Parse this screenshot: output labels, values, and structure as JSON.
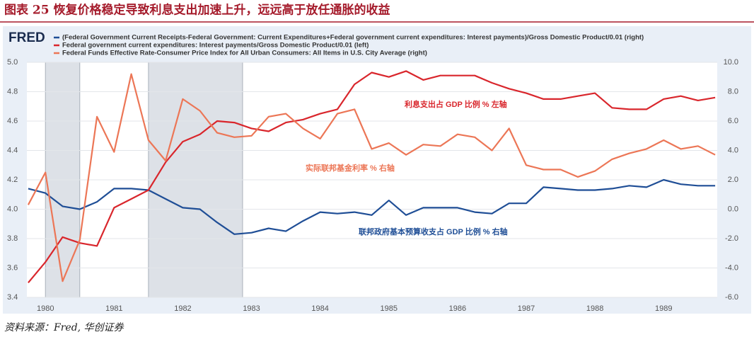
{
  "title": "图表 25 恢复价格稳定导致利息支出加速上升，远远高于放任通胀的收益",
  "source": "资料来源：Fred, 华创证券",
  "chart_data": {
    "type": "line",
    "logo": "FRED",
    "x": [
      1979.75,
      1980,
      1980.25,
      1980.5,
      1980.75,
      1981,
      1981.25,
      1981.5,
      1981.75,
      1982,
      1982.25,
      1982.5,
      1982.75,
      1983,
      1983.25,
      1983.5,
      1983.75,
      1984,
      1984.25,
      1984.5,
      1984.75,
      1985,
      1985.25,
      1985.5,
      1985.75,
      1986,
      1986.25,
      1986.5,
      1986.75,
      1987,
      1987.25,
      1987.5,
      1987.75,
      1988,
      1988.25,
      1988.5,
      1988.75,
      1989,
      1989.25,
      1989.5,
      1989.75
    ],
    "xlim": [
      1979.73,
      1989.78
    ],
    "xticks": [
      1980,
      1981,
      1982,
      1983,
      1984,
      1985,
      1986,
      1987,
      1988,
      1989
    ],
    "ylim": [
      3.4,
      5.0
    ],
    "yticks": [
      {
        "value": 5,
        "label": "5.0"
      },
      {
        "value": 4.8,
        "label": "4.8"
      },
      {
        "value": 4.6,
        "label": "4.6"
      },
      {
        "value": 4.4,
        "label": "4.4"
      },
      {
        "value": 4.2,
        "label": "4.2"
      },
      {
        "value": 4,
        "label": "4.0"
      },
      {
        "value": 3.8,
        "label": "3.8"
      },
      {
        "value": 3.6,
        "label": "3.6"
      },
      {
        "value": 3.4,
        "label": "3.4"
      }
    ],
    "y2lim": [
      -6,
      10
    ],
    "y2ticks": [
      {
        "value": 10,
        "label": "10.0"
      },
      {
        "value": 8,
        "label": "8.0"
      },
      {
        "value": 6,
        "label": "6.0"
      },
      {
        "value": 4,
        "label": "4.0"
      },
      {
        "value": 2,
        "label": "2.0"
      },
      {
        "value": 0,
        "label": "0.0"
      },
      {
        "value": -2,
        "label": "-2.0"
      },
      {
        "value": -4,
        "label": "-4.0"
      },
      {
        "value": -6,
        "label": "-6.0"
      }
    ],
    "grid": true,
    "recessions": [
      [
        1980,
        1980.5
      ],
      [
        1981.5,
        1982.87
      ]
    ],
    "series": [
      {
        "name": "(Federal Government Current Receipts-Federal Government: Current Expenditures+Federal government current expenditures: Interest payments)/Gross Domestic Product/0.01 (right)",
        "color": "#1f4e96",
        "axis": "y2",
        "values": [
          1.4,
          1.1,
          0.2,
          0.0,
          0.5,
          1.4,
          1.4,
          1.3,
          0.7,
          0.1,
          0.0,
          -0.9,
          -1.7,
          -1.6,
          -1.3,
          -1.5,
          -0.8,
          -0.2,
          -0.3,
          -0.2,
          -0.4,
          0.6,
          -0.4,
          0.1,
          0.1,
          0.1,
          -0.2,
          -0.3,
          0.4,
          0.4,
          1.5,
          1.4,
          1.3,
          1.3,
          1.4,
          1.6,
          1.5,
          2.0,
          1.7,
          1.6,
          1.6
        ]
      },
      {
        "name": "Federal government current expenditures: Interest payments/Gross Domestic Product/0.01 (left)",
        "color": "#d9262c",
        "axis": "y",
        "values": [
          3.5,
          3.64,
          3.81,
          3.77,
          3.75,
          4.01,
          4.07,
          4.13,
          4.32,
          4.46,
          4.51,
          4.6,
          4.59,
          4.55,
          4.53,
          4.59,
          4.61,
          4.65,
          4.68,
          4.85,
          4.93,
          4.9,
          4.94,
          4.88,
          4.91,
          4.91,
          4.91,
          4.86,
          4.82,
          4.79,
          4.75,
          4.75,
          4.77,
          4.79,
          4.69,
          4.68,
          4.68,
          4.75,
          4.77,
          4.74,
          4.76
        ]
      },
      {
        "name": "Federal Funds Effective Rate-Consumer Price Index for All Urban Consumers: All Items in U.S. City Average (right)",
        "color": "#ec7656",
        "axis": "y2",
        "values": [
          0.3,
          2.5,
          -4.9,
          -2.1,
          6.3,
          3.9,
          9.2,
          4.7,
          3.3,
          7.5,
          6.7,
          5.2,
          4.9,
          5.0,
          6.3,
          6.5,
          5.5,
          4.8,
          6.5,
          6.8,
          4.1,
          4.5,
          3.7,
          4.4,
          4.3,
          5.1,
          4.9,
          4.0,
          5.5,
          3.0,
          2.7,
          2.7,
          2.2,
          2.6,
          3.4,
          3.8,
          4.1,
          4.7,
          4.1,
          4.3,
          3.7
        ]
      }
    ],
    "annotations": [
      {
        "text": "利息支出占 GDP 比例  % 左轴",
        "color": "#d9262c"
      },
      {
        "text": "实际联邦基金利率 % 右轴",
        "color": "#ec7656"
      },
      {
        "text": "联邦政府基本预算收支占 GDP 比例 % 右轴",
        "color": "#1f4e96"
      }
    ]
  }
}
